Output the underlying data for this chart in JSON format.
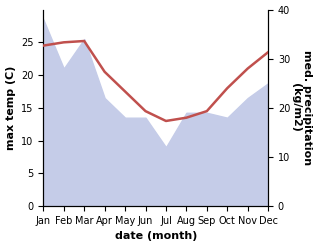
{
  "months": [
    "Jan",
    "Feb",
    "Mar",
    "Apr",
    "May",
    "Jun",
    "Jul",
    "Aug",
    "Sep",
    "Oct",
    "Nov",
    "Dec"
  ],
  "month_indices": [
    0,
    1,
    2,
    3,
    4,
    5,
    6,
    7,
    8,
    9,
    10,
    11
  ],
  "temperature": [
    24.5,
    25.0,
    25.2,
    20.5,
    17.5,
    14.5,
    13.0,
    13.5,
    14.5,
    18.0,
    21.0,
    23.5
  ],
  "precipitation": [
    38,
    28,
    34,
    22,
    18,
    18,
    12,
    19,
    19,
    18,
    22,
    25
  ],
  "temp_color": "#c0504d",
  "precip_fill_color": "#c5cce8",
  "temp_ylim": [
    0,
    30
  ],
  "precip_ylim": [
    0,
    40
  ],
  "temp_yticks": [
    0,
    5,
    10,
    15,
    20,
    25
  ],
  "precip_yticks": [
    0,
    10,
    20,
    30,
    40
  ],
  "xlabel": "date (month)",
  "ylabel_left": "max temp (C)",
  "ylabel_right": "med. precipitation\n(kg/m2)",
  "label_fontsize": 8,
  "tick_fontsize": 7,
  "background_color": "#ffffff",
  "temp_linewidth": 1.8
}
